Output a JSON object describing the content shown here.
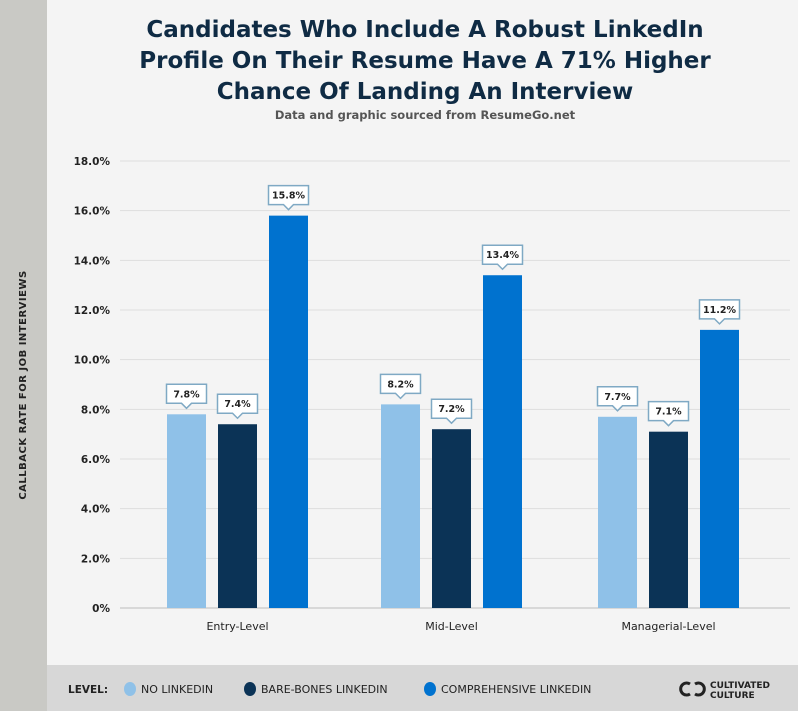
{
  "chart_data": {
    "type": "bar",
    "title_lines": [
      "Candidates Who Include A Robust LinkedIn",
      "Profile On Their Resume Have A 71% Higher",
      "Chance Of Landing An Interview"
    ],
    "subtitle": "Data and graphic sourced from ResumeGo.net",
    "ylabel": "CALLBACK RATE FOR JOB INTERVIEWS",
    "xlabel": "",
    "ylim": [
      0,
      18
    ],
    "yticks": [
      0,
      2,
      4,
      6,
      8,
      10,
      12,
      14,
      16,
      18
    ],
    "ytick_labels": [
      "0%",
      "2.0%",
      "4.0%",
      "6.0%",
      "8.0%",
      "10.0%",
      "12.0%",
      "14.0%",
      "16.0%",
      "18.0%"
    ],
    "grid": true,
    "categories": [
      "Entry-Level",
      "Mid-Level",
      "Managerial-Level"
    ],
    "series": [
      {
        "name": "NO LINKEDIN",
        "color": "#8fc1e8",
        "values": [
          7.8,
          8.2,
          7.7
        ],
        "labels": [
          "7.8%",
          "8.2%",
          "7.7%"
        ]
      },
      {
        "name": "BARE-BONES LINKEDIN",
        "color": "#0b3356",
        "values": [
          7.4,
          7.2,
          7.1
        ],
        "labels": [
          "7.4%",
          "7.2%",
          "7.1%"
        ]
      },
      {
        "name": "COMPREHENSIVE LINKEDIN",
        "color": "#0072cf",
        "values": [
          15.8,
          13.4,
          11.2
        ],
        "labels": [
          "15.8%",
          "13.4%",
          "11.2%"
        ]
      }
    ],
    "legend_title": "LEVEL:",
    "legend_position": "bottom",
    "brand": [
      "CULTIVATED",
      "CULTURE"
    ]
  }
}
